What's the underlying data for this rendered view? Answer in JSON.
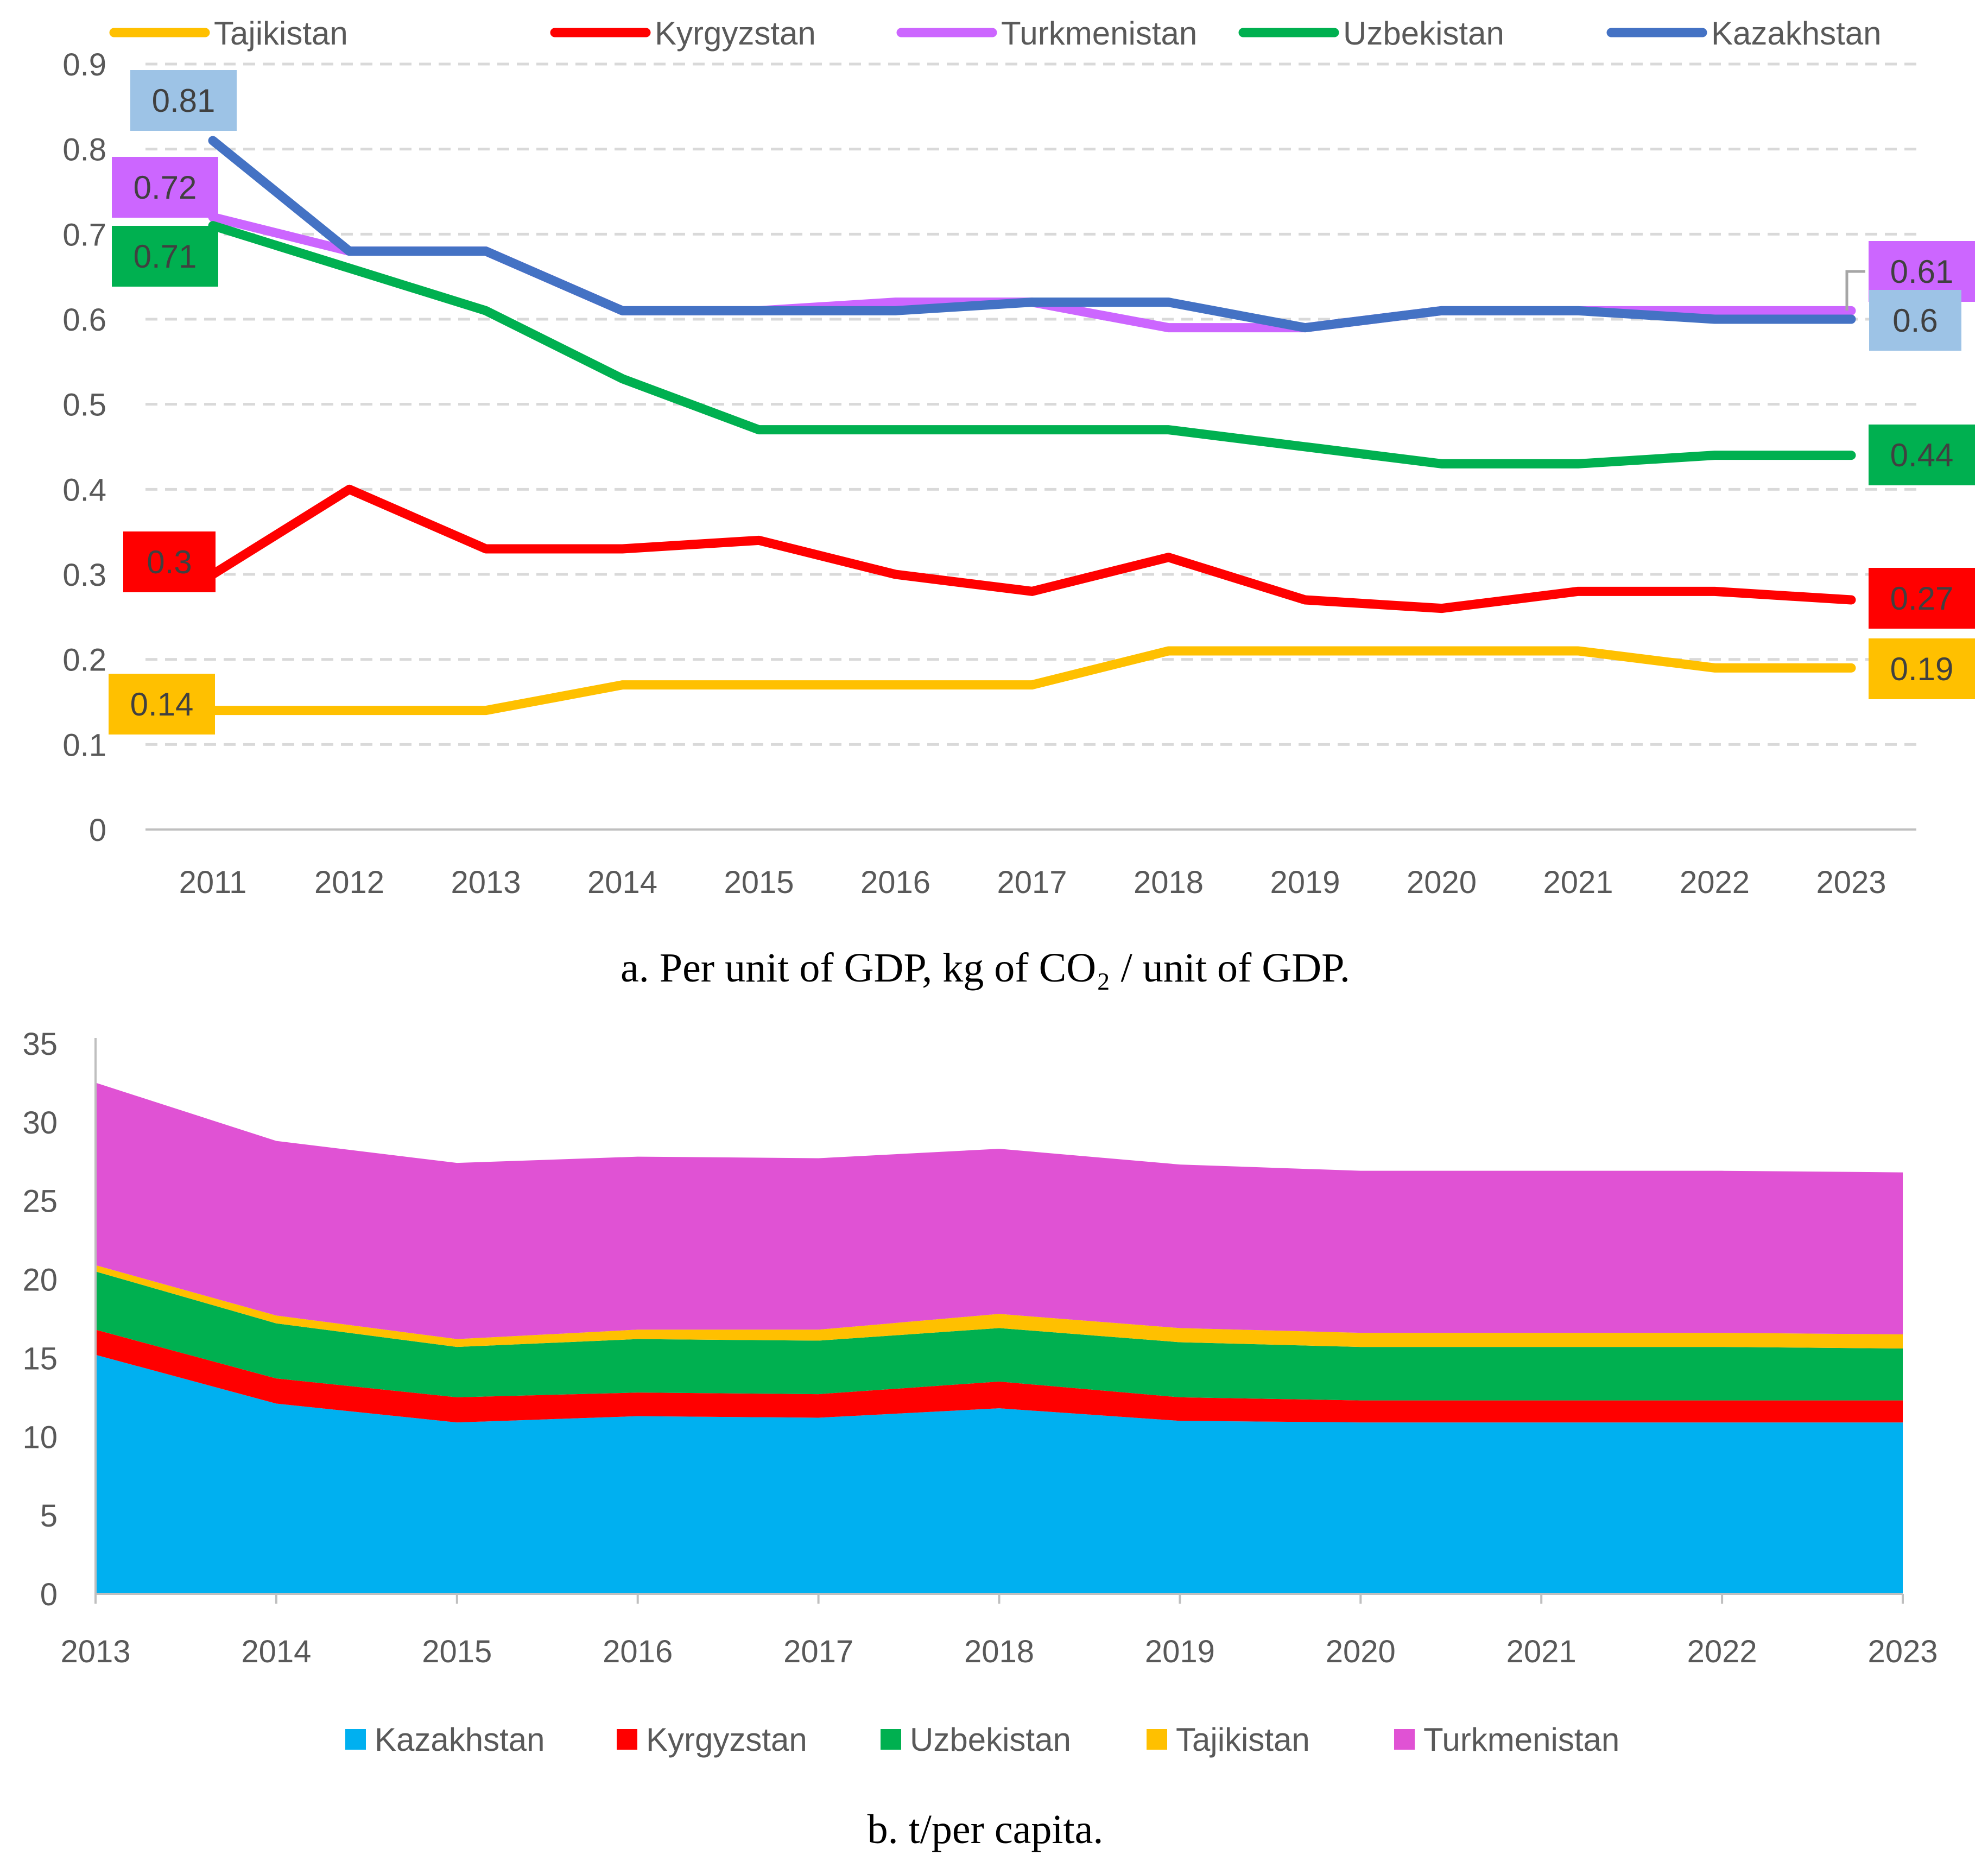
{
  "colors": {
    "tajikistan": "#FFC000",
    "kyrgyzstan": "#FF0000",
    "turkmenistan": "#CC66FF",
    "uzbekistan": "#00B050",
    "kazakhstan": "#4472C4",
    "area_kazakhstan": "#00B0F0",
    "area_kyrgyzstan": "#FF0000",
    "area_uzbekistan": "#00B050",
    "area_tajikistan": "#FFC000",
    "area_turkmenistan": "#E052D4",
    "label_kazakhstan_bg": "#9DC3E6",
    "label_turkmenistan_bg": "#CC66FF",
    "grid": "#D9D9D9",
    "axis": "#BFBFBF"
  },
  "chart_data": [
    {
      "type": "line",
      "caption": "a. Per unit of GDP, kg of CO₂ / unit of GDP.",
      "categories": [
        "2011",
        "2012",
        "2013",
        "2014",
        "2015",
        "2016",
        "2017",
        "2018",
        "2019",
        "2020",
        "2021",
        "2022",
        "2023"
      ],
      "ylim": [
        0,
        0.9
      ],
      "yticks": [
        "0",
        "0.1",
        "0.2",
        "0.3",
        "0.4",
        "0.5",
        "0.6",
        "0.7",
        "0.8",
        "0.9"
      ],
      "grid": "dashed horizontal",
      "legend_position": "top",
      "series": [
        {
          "name": "Tajikistan",
          "key": "tajikistan",
          "values": [
            0.14,
            0.14,
            0.14,
            0.17,
            0.17,
            0.17,
            0.17,
            0.21,
            0.21,
            0.21,
            0.21,
            0.19,
            0.19
          ],
          "start_label": "0.14",
          "end_label": "0.19"
        },
        {
          "name": "Kyrgyzstan",
          "key": "kyrgyzstan",
          "values": [
            0.3,
            0.4,
            0.33,
            0.33,
            0.34,
            0.3,
            0.28,
            0.32,
            0.27,
            0.26,
            0.28,
            0.28,
            0.27
          ],
          "start_label": "0.3",
          "end_label": "0.27"
        },
        {
          "name": "Turkmenistan",
          "key": "turkmenistan",
          "values": [
            0.72,
            0.68,
            0.68,
            0.61,
            0.61,
            0.62,
            0.62,
            0.59,
            0.59,
            0.61,
            0.61,
            0.61,
            0.61
          ],
          "start_label": "0.72",
          "end_label": "0.61"
        },
        {
          "name": "Uzbekistan",
          "key": "uzbekistan",
          "values": [
            0.71,
            0.66,
            0.61,
            0.53,
            0.47,
            0.47,
            0.47,
            0.47,
            0.45,
            0.43,
            0.43,
            0.44,
            0.44
          ],
          "start_label": "0.71",
          "end_label": "0.44"
        },
        {
          "name": "Kazakhstan",
          "key": "kazakhstan",
          "values": [
            0.81,
            0.68,
            0.68,
            0.61,
            0.61,
            0.61,
            0.62,
            0.62,
            0.59,
            0.61,
            0.61,
            0.6,
            0.6
          ],
          "start_label": "0.81",
          "end_label": "0.6"
        }
      ]
    },
    {
      "type": "area",
      "stacked": true,
      "caption": "b. t/per capita.",
      "categories": [
        "2013",
        "2014",
        "2015",
        "2016",
        "2017",
        "2018",
        "2019",
        "2020",
        "2021",
        "2022",
        "2023"
      ],
      "ylim": [
        0,
        35
      ],
      "yticks": [
        "0",
        "5",
        "10",
        "15",
        "20",
        "25",
        "30",
        "35"
      ],
      "legend_position": "bottom",
      "series": [
        {
          "name": "Kazakhstan",
          "key": "area_kazakhstan",
          "values": [
            15.2,
            12.1,
            10.9,
            11.3,
            11.2,
            11.8,
            11.0,
            10.9,
            10.9,
            10.9,
            10.9
          ]
        },
        {
          "name": "Kyrgyzstan",
          "key": "area_kyrgyzstan",
          "values": [
            1.6,
            1.6,
            1.6,
            1.5,
            1.5,
            1.7,
            1.5,
            1.4,
            1.4,
            1.4,
            1.4
          ]
        },
        {
          "name": "Uzbekistan",
          "key": "area_uzbekistan",
          "values": [
            3.7,
            3.5,
            3.2,
            3.4,
            3.4,
            3.4,
            3.5,
            3.4,
            3.4,
            3.4,
            3.3
          ]
        },
        {
          "name": "Tajikistan",
          "key": "area_tajikistan",
          "values": [
            0.4,
            0.5,
            0.5,
            0.6,
            0.7,
            0.9,
            0.9,
            0.9,
            0.9,
            0.9,
            0.9
          ]
        },
        {
          "name": "Turkmenistan",
          "key": "area_turkmenistan",
          "values": [
            11.6,
            11.1,
            11.2,
            11.0,
            10.9,
            10.5,
            10.4,
            10.3,
            10.3,
            10.3,
            10.3
          ]
        }
      ]
    }
  ]
}
